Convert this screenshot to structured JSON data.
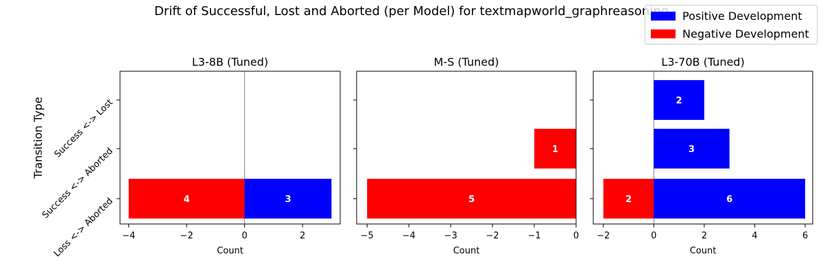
{
  "chart_data": {
    "type": "bar",
    "orientation": "horizontal",
    "title": "Drift of Successful, Lost and Aborted (per Model) for textmapworld_graphreasoning",
    "ylabel": "Transition Type",
    "xlabel": "Count",
    "categories": [
      "Success <-> Lost",
      "Success <-> Aborted",
      "Loss <-> Aborted"
    ],
    "legend": {
      "position": "top-right",
      "entries": [
        {
          "label": "Positive Development",
          "color": "#0000ff"
        },
        {
          "label": "Negative Development",
          "color": "#ff0000"
        }
      ]
    },
    "panels": [
      {
        "title": "L3-8B (Tuned)",
        "xlim": [
          -4.3,
          3.3
        ],
        "xticks": [
          -4,
          -2,
          0,
          2
        ],
        "xtick_labels": [
          "−4",
          "−2",
          "0",
          "2"
        ],
        "zero_line": true,
        "positive": [
          0,
          0,
          3
        ],
        "negative": [
          0,
          0,
          -4
        ],
        "positive_labels": [
          "",
          "",
          "3"
        ],
        "negative_labels": [
          "",
          "",
          "4"
        ]
      },
      {
        "title": "M-S (Tuned)",
        "xlim": [
          -5.25,
          0
        ],
        "xticks": [
          -5,
          -4,
          -3,
          -2,
          -1,
          0
        ],
        "xtick_labels": [
          "−5",
          "−4",
          "−3",
          "−2",
          "−1",
          "0"
        ],
        "zero_line": false,
        "positive": [
          0,
          0,
          0
        ],
        "negative": [
          0,
          -1,
          -5
        ],
        "positive_labels": [
          "",
          "",
          ""
        ],
        "negative_labels": [
          "",
          "1",
          "5"
        ]
      },
      {
        "title": "L3-70B (Tuned)",
        "xlim": [
          -2.4,
          6.3
        ],
        "xticks": [
          -2,
          0,
          2,
          4,
          6
        ],
        "xtick_labels": [
          "−2",
          "0",
          "2",
          "4",
          "6"
        ],
        "zero_line": true,
        "positive": [
          2,
          3,
          6
        ],
        "negative": [
          0,
          0,
          -2
        ],
        "positive_labels": [
          "2",
          "3",
          "6"
        ],
        "negative_labels": [
          "",
          "",
          "2"
        ]
      }
    ]
  }
}
